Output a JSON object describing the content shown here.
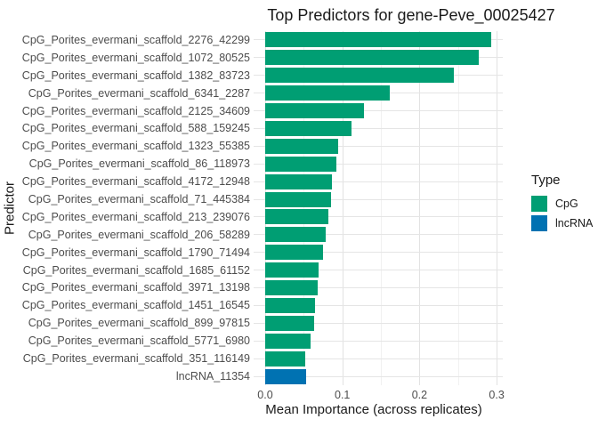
{
  "title": "Top Predictors for gene-Peve_00025427",
  "axes": {
    "x_title": "Mean Importance (across replicates)",
    "y_title": "Predictor"
  },
  "legend": {
    "title": "Type",
    "items": [
      {
        "label": "CpG",
        "color": "#009E73"
      },
      {
        "label": "lncRNA",
        "color": "#0072B2"
      }
    ]
  },
  "chart_data": {
    "type": "bar",
    "orientation": "horizontal",
    "title": "Top Predictors for gene-Peve_00025427",
    "xlabel": "Mean Importance (across replicates)",
    "ylabel": "Predictor",
    "xlim": [
      0,
      0.31
    ],
    "x_tick_values": [
      0,
      0.1,
      0.2,
      0.3
    ],
    "x_tick_labels": [
      "0.0",
      "0.1",
      "0.2",
      "0.3"
    ],
    "x_minor_tick_values": [
      0.05,
      0.15,
      0.25
    ],
    "grid": "on",
    "background": "#ffffff",
    "legend_position": "right",
    "categories": [
      "CpG_Porites_evermani_scaffold_2276_42299",
      "CpG_Porites_evermani_scaffold_1072_80525",
      "CpG_Porites_evermani_scaffold_1382_83723",
      "CpG_Porites_evermani_scaffold_6341_2287",
      "CpG_Porites_evermani_scaffold_2125_34609",
      "CpG_Porites_evermani_scaffold_588_159245",
      "CpG_Porites_evermani_scaffold_1323_55385",
      "CpG_Porites_evermani_scaffold_86_118973",
      "CpG_Porites_evermani_scaffold_4172_12948",
      "CpG_Porites_evermani_scaffold_71_445384",
      "CpG_Porites_evermani_scaffold_213_239076",
      "CpG_Porites_evermani_scaffold_206_58289",
      "CpG_Porites_evermani_scaffold_1790_71494",
      "CpG_Porites_evermani_scaffold_1685_61152",
      "CpG_Porites_evermani_scaffold_3971_13198",
      "CpG_Porites_evermani_scaffold_1451_16545",
      "CpG_Porites_evermani_scaffold_899_97815",
      "CpG_Porites_evermani_scaffold_5771_6980",
      "CpG_Porites_evermani_scaffold_351_116149",
      "lncRNA_11354"
    ],
    "values": [
      0.293,
      0.277,
      0.245,
      0.162,
      0.128,
      0.112,
      0.095,
      0.092,
      0.086,
      0.085,
      0.082,
      0.078,
      0.075,
      0.069,
      0.068,
      0.065,
      0.064,
      0.059,
      0.052,
      0.053
    ],
    "types": [
      "CpG",
      "CpG",
      "CpG",
      "CpG",
      "CpG",
      "CpG",
      "CpG",
      "CpG",
      "CpG",
      "CpG",
      "CpG",
      "CpG",
      "CpG",
      "CpG",
      "CpG",
      "CpG",
      "CpG",
      "CpG",
      "CpG",
      "lncRNA"
    ],
    "type_colors": {
      "CpG": "#009E73",
      "lncRNA": "#0072B2"
    }
  }
}
